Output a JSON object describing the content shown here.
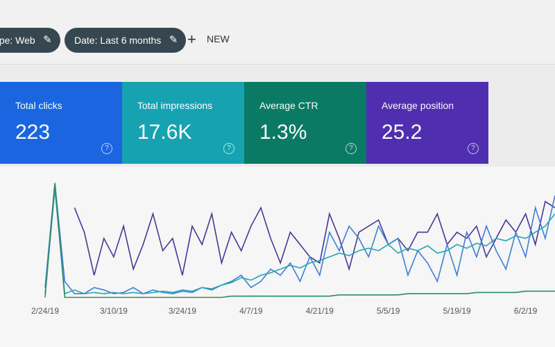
{
  "filters": [
    {
      "label": "Type: Web"
    },
    {
      "label": "Date: Last 6 months"
    }
  ],
  "new_button": "NEW",
  "metrics": [
    {
      "label": "Total clicks",
      "value": "223",
      "color": "#1a66e0"
    },
    {
      "label": "Total impressions",
      "value": "17.6K",
      "color": "#17a2b2"
    },
    {
      "label": "Average CTR",
      "value": "1.3%",
      "color": "#0a7a64"
    },
    {
      "label": "Average position",
      "value": "25.2",
      "color": "#4f2fb0"
    }
  ],
  "chart_data": {
    "type": "line",
    "categories": [
      "2/24/19",
      null,
      null,
      null,
      null,
      null,
      null,
      "3/10/19",
      null,
      null,
      null,
      null,
      null,
      null,
      "3/24/19",
      null,
      null,
      null,
      null,
      null,
      null,
      "4/7/19",
      null,
      null,
      null,
      null,
      null,
      null,
      "4/21/19",
      null,
      null,
      null,
      null,
      null,
      null,
      "5/5/19",
      null,
      null,
      null,
      null,
      null,
      null,
      "5/19/19",
      null,
      null,
      null,
      null,
      null,
      null,
      "6/2/19",
      null,
      null,
      null
    ],
    "ylim": [
      0,
      100
    ],
    "series": [
      {
        "color": "#4a3596",
        "values": [
          null,
          null,
          null,
          75,
          55,
          20,
          50,
          35,
          60,
          25,
          45,
          70,
          40,
          50,
          20,
          60,
          45,
          70,
          30,
          55,
          40,
          60,
          75,
          50,
          30,
          55,
          45,
          35,
          30,
          70,
          50,
          25,
          55,
          60,
          65,
          45,
          50,
          40,
          55,
          55,
          70,
          45,
          55,
          50,
          60,
          35,
          50,
          65,
          55,
          70,
          45,
          80,
          75
        ]
      },
      {
        "color": "#3d7fd6",
        "values": [
          10,
          95,
          15,
          5,
          5,
          10,
          8,
          5,
          6,
          10,
          5,
          8,
          6,
          5,
          7,
          6,
          10,
          8,
          12,
          15,
          20,
          10,
          15,
          25,
          20,
          30,
          15,
          35,
          20,
          55,
          40,
          60,
          50,
          35,
          60,
          45,
          50,
          20,
          40,
          30,
          15,
          45,
          20,
          55,
          35,
          60,
          40,
          25,
          55,
          35,
          75,
          50,
          85
        ]
      },
      {
        "color": "#2aa3b3",
        "values": [
          5,
          90,
          5,
          8,
          5,
          6,
          5,
          6,
          5,
          6,
          5,
          6,
          7,
          6,
          8,
          7,
          10,
          9,
          12,
          14,
          18,
          16,
          20,
          22,
          25,
          28,
          26,
          30,
          32,
          35,
          38,
          36,
          40,
          42,
          40,
          45,
          38,
          42,
          40,
          44,
          38,
          40,
          45,
          42,
          46,
          44,
          50,
          48,
          52,
          50,
          55,
          60,
          70
        ]
      },
      {
        "color": "#2f8a64",
        "values": [
          2,
          95,
          2,
          2,
          2,
          2,
          2,
          2,
          2,
          2,
          2,
          2,
          2,
          2,
          2,
          2,
          2,
          2,
          2,
          3,
          3,
          3,
          3,
          3,
          3,
          3,
          3,
          3,
          3,
          3,
          4,
          4,
          4,
          4,
          4,
          4,
          4,
          5,
          5,
          5,
          5,
          5,
          5,
          5,
          6,
          6,
          6,
          6,
          6,
          7,
          7,
          7,
          7
        ]
      }
    ]
  }
}
